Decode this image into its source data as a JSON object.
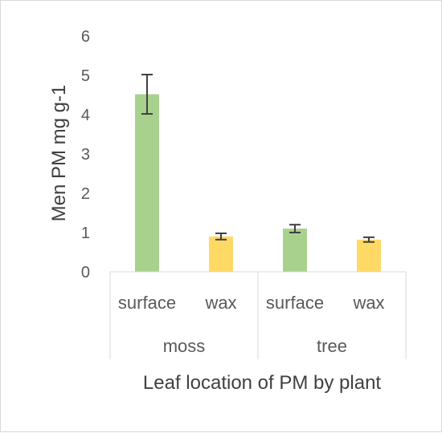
{
  "chart_data": {
    "type": "bar",
    "title": "",
    "xlabel": "Leaf location of PM by plant",
    "ylabel": "Men PM mg g-1",
    "ylim": [
      0,
      6
    ],
    "yticks": [
      "0",
      "1",
      "2",
      "3",
      "4",
      "5",
      "6"
    ],
    "groups": [
      {
        "name": "moss",
        "bars": [
          {
            "category": "surface",
            "value": 4.52,
            "error": 0.5,
            "color": "#a9d18e"
          },
          {
            "category": "wax",
            "value": 0.9,
            "error": 0.08,
            "color": "#ffd966"
          }
        ]
      },
      {
        "name": "tree",
        "bars": [
          {
            "category": "surface",
            "value": 1.1,
            "error": 0.1,
            "color": "#a9d18e"
          },
          {
            "category": "wax",
            "value": 0.82,
            "error": 0.06,
            "color": "#ffd966"
          }
        ]
      }
    ],
    "grid": false,
    "legend": "none"
  }
}
